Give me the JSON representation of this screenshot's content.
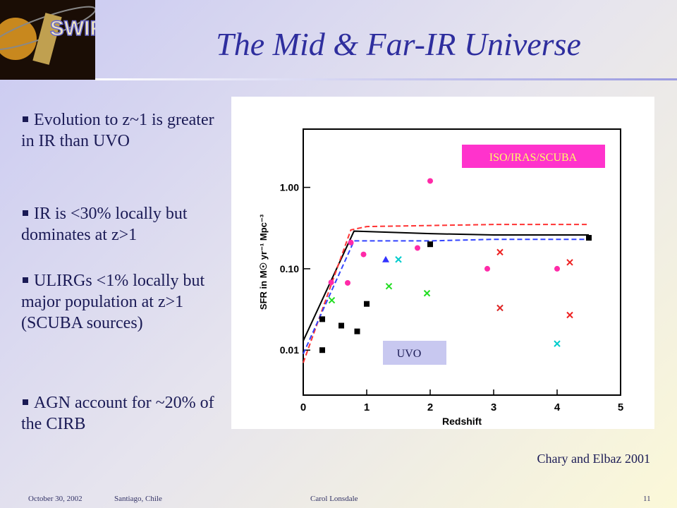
{
  "header": {
    "title": "The Mid & Far-IR Universe",
    "logo": "SWIRE"
  },
  "bullets": [
    "Evolution to z~1 is greater in IR than UVO",
    "IR is <30% locally but dominates at z>1",
    "ULIRGs <1% locally but major population at z>1 (SCUBA sources)",
    "AGN account for ~20% of the CIRB"
  ],
  "figure": {
    "chart_data": {
      "type": "scatter",
      "x_label": "Redshift",
      "y_label": "SFR in M☉ yr⁻¹ Mpc⁻³",
      "xlim": [
        0,
        5
      ],
      "ylim": [
        0.0028,
        5.2
      ],
      "log_y": true,
      "xticks": [
        0,
        1,
        2,
        3,
        4,
        5
      ],
      "yticks": [
        {
          "value": 0.01,
          "label": "0.01"
        },
        {
          "value": 0.1,
          "label": "0.10"
        },
        {
          "value": 1,
          "label": "1.00"
        }
      ],
      "annotations": [
        {
          "text": "ISO/IRAS/SCUBA"
        },
        {
          "text": "UVO"
        }
      ],
      "series": [
        {
          "type": "line",
          "color": "#000000",
          "style": "solid",
          "x": [
            0,
            0.8,
            2,
            3,
            4.5
          ],
          "values": [
            0.013,
            0.29,
            0.27,
            0.26,
            0.26
          ]
        },
        {
          "type": "line",
          "color": "#ff3333",
          "style": "dashed",
          "x": [
            0,
            0.75,
            1,
            3,
            4.5
          ],
          "values": [
            0.007,
            0.3,
            0.33,
            0.35,
            0.35
          ]
        },
        {
          "type": "line",
          "color": "#3344ff",
          "style": "dashed",
          "x": [
            0,
            0.8,
            2,
            3,
            4.5
          ],
          "values": [
            0.009,
            0.22,
            0.22,
            0.23,
            0.23
          ]
        },
        {
          "type": "points",
          "color": "#ff2aa8",
          "marker": "circle",
          "x": [
            0.44,
            0.7,
            0.95,
            0.75,
            2.0,
            2.9,
            4.0,
            1.8
          ],
          "values": [
            0.068,
            0.067,
            0.15,
            0.21,
            1.2,
            0.1,
            0.1,
            0.18
          ]
        },
        {
          "type": "points",
          "color": "#000000",
          "marker": "square",
          "x": [
            0.3,
            1.0,
            2.0,
            4.5,
            0.6,
            0.85,
            0.3
          ],
          "values": [
            0.024,
            0.037,
            0.2,
            0.24,
            0.02,
            0.017,
            0.01
          ]
        },
        {
          "type": "points",
          "color": "#22dd22",
          "marker": "cross",
          "x": [
            1.35,
            1.95,
            0.45
          ],
          "values": [
            0.061,
            0.05,
            0.041
          ]
        },
        {
          "type": "points",
          "color": "#00cccc",
          "marker": "cross",
          "x": [
            1.5,
            3.1,
            4.0
          ],
          "values": [
            0.13,
            0.033,
            0.012
          ]
        },
        {
          "type": "points",
          "color": "#ee2222",
          "marker": "cross",
          "x": [
            3.1,
            4.2,
            3.1,
            4.2
          ],
          "values": [
            0.16,
            0.12,
            0.033,
            0.027
          ]
        },
        {
          "type": "points",
          "color": "#3333ff",
          "marker": "triangle",
          "x": [
            1.3
          ],
          "values": [
            0.13
          ]
        }
      ]
    },
    "caption": "Chary and Elbaz 2001"
  },
  "footer": {
    "date": "October 30, 2002",
    "place": "Santiago, Chile",
    "author": "Carol Lonsdale",
    "page": "11"
  }
}
